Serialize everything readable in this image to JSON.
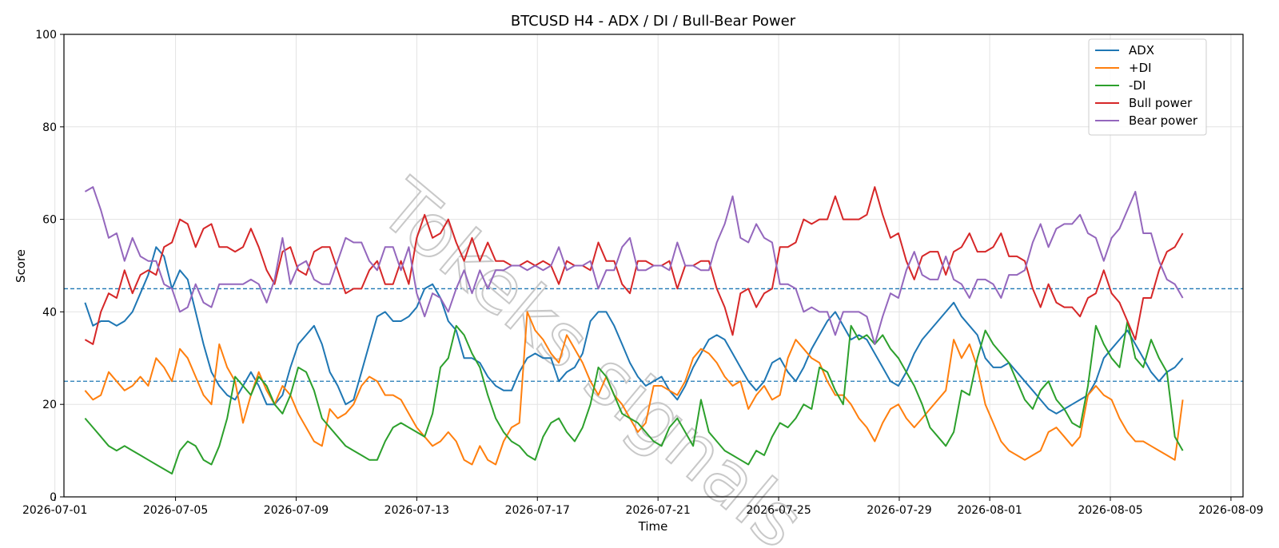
{
  "chart_data": {
    "type": "line",
    "title": "BTCUSD H4 - ADX / DI / Bull-Bear Power",
    "xlabel": "Time",
    "ylabel": "Score",
    "ylim": [
      0,
      100
    ],
    "xlim": [
      "2026-07-01",
      "2026-08-09"
    ],
    "x_ticks": [
      "2026-07-01",
      "2026-07-05",
      "2026-07-09",
      "2026-07-13",
      "2026-07-17",
      "2026-07-21",
      "2026-07-25",
      "2026-07-29",
      "2026-08-01",
      "2026-08-05",
      "2026-08-09"
    ],
    "y_ticks": [
      0,
      20,
      40,
      60,
      80,
      100
    ],
    "grid": true,
    "legend_position": "top-right",
    "reference_lines": [
      45,
      25
    ],
    "watermark": "Tokeks signals",
    "x_start": "2026-07-02",
    "x_end": "2026-08-07",
    "series": [
      {
        "name": "ADX",
        "color": "#1f77b4",
        "values": [
          42,
          37,
          38,
          38,
          37,
          38,
          40,
          44,
          48,
          54,
          52,
          45,
          49,
          47,
          40,
          33,
          27,
          24,
          22,
          21,
          24,
          27,
          24,
          20,
          20,
          22,
          28,
          33,
          35,
          37,
          33,
          27,
          24,
          20,
          21,
          27,
          33,
          39,
          40,
          38,
          38,
          39,
          41,
          45,
          46,
          43,
          38,
          36,
          30,
          30,
          29,
          26,
          24,
          23,
          23,
          27,
          30,
          31,
          30,
          30,
          25,
          27,
          28,
          31,
          38,
          40,
          40,
          37,
          33,
          29,
          26,
          24,
          25,
          26,
          23,
          21,
          24,
          28,
          31,
          34,
          35,
          34,
          31,
          28,
          25,
          23,
          25,
          29,
          30,
          27,
          25,
          28,
          32,
          35,
          38,
          40,
          37,
          34,
          35,
          34,
          31,
          28,
          25,
          24,
          27,
          31,
          34,
          36,
          38,
          40,
          42,
          39,
          37,
          35,
          30,
          28,
          28,
          29,
          27,
          25,
          23,
          21,
          19,
          18,
          19,
          20,
          21,
          22,
          25,
          30,
          32,
          34,
          36,
          33,
          30,
          27,
          25,
          27,
          28,
          30
        ]
      },
      {
        "name": "+DI",
        "color": "#ff7f0e",
        "values": [
          23,
          21,
          22,
          27,
          25,
          23,
          24,
          26,
          24,
          30,
          28,
          25,
          32,
          30,
          26,
          22,
          20,
          33,
          28,
          25,
          16,
          22,
          27,
          23,
          20,
          24,
          22,
          18,
          15,
          12,
          11,
          19,
          17,
          18,
          20,
          24,
          26,
          25,
          22,
          22,
          21,
          18,
          15,
          13,
          11,
          12,
          14,
          12,
          8,
          7,
          11,
          8,
          7,
          12,
          15,
          16,
          40,
          36,
          34,
          31,
          29,
          35,
          32,
          29,
          25,
          22,
          26,
          22,
          20,
          17,
          14,
          16,
          24,
          24,
          23,
          22,
          25,
          30,
          32,
          31,
          29,
          26,
          24,
          25,
          19,
          22,
          24,
          21,
          22,
          30,
          34,
          32,
          30,
          29,
          25,
          22,
          22,
          20,
          17,
          15,
          12,
          16,
          19,
          20,
          17,
          15,
          17,
          19,
          21,
          23,
          34,
          30,
          33,
          28,
          20,
          16,
          12,
          10,
          9,
          8,
          9,
          10,
          14,
          15,
          13,
          11,
          13,
          22,
          24,
          22,
          21,
          17,
          14,
          12,
          12,
          11,
          10,
          9,
          8,
          21
        ]
      },
      {
        "name": "-DI",
        "color": "#2ca02c",
        "values": [
          17,
          15,
          13,
          11,
          10,
          11,
          10,
          9,
          8,
          7,
          6,
          5,
          10,
          12,
          11,
          8,
          7,
          11,
          17,
          26,
          24,
          22,
          26,
          24,
          20,
          18,
          22,
          28,
          27,
          23,
          17,
          15,
          13,
          11,
          10,
          9,
          8,
          8,
          12,
          15,
          16,
          15,
          14,
          13,
          18,
          28,
          30,
          37,
          35,
          31,
          28,
          22,
          17,
          14,
          12,
          11,
          9,
          8,
          13,
          16,
          17,
          14,
          12,
          15,
          20,
          28,
          26,
          22,
          18,
          17,
          16,
          14,
          12,
          11,
          15,
          17,
          14,
          11,
          21,
          14,
          12,
          10,
          9,
          8,
          7,
          10,
          9,
          13,
          16,
          15,
          17,
          20,
          19,
          28,
          27,
          23,
          20,
          37,
          34,
          35,
          33,
          35,
          32,
          30,
          27,
          24,
          20,
          15,
          13,
          11,
          14,
          23,
          22,
          30,
          36,
          33,
          31,
          29,
          25,
          21,
          19,
          23,
          25,
          21,
          19,
          16,
          15,
          24,
          37,
          33,
          30,
          28,
          38,
          30,
          28,
          34,
          30,
          27,
          13,
          10
        ]
      },
      {
        "name": "Bull power",
        "color": "#d62728",
        "values": [
          34,
          33,
          40,
          44,
          43,
          49,
          44,
          48,
          49,
          48,
          54,
          55,
          60,
          59,
          54,
          58,
          59,
          54,
          54,
          53,
          54,
          58,
          54,
          49,
          46,
          53,
          54,
          49,
          48,
          53,
          54,
          54,
          49,
          44,
          45,
          45,
          49,
          51,
          46,
          46,
          51,
          46,
          56,
          61,
          56,
          57,
          60,
          55,
          51,
          56,
          51,
          55,
          51,
          51,
          50,
          50,
          51,
          50,
          51,
          50,
          46,
          51,
          50,
          50,
          49,
          55,
          51,
          51,
          46,
          44,
          51,
          51,
          50,
          50,
          51,
          45,
          50,
          50,
          51,
          51,
          45,
          41,
          35,
          44,
          45,
          41,
          44,
          45,
          54,
          54,
          55,
          60,
          59,
          60,
          60,
          65,
          60,
          60,
          60,
          61,
          67,
          61,
          56,
          57,
          51,
          47,
          52,
          53,
          53,
          48,
          53,
          54,
          57,
          53,
          53,
          54,
          57,
          52,
          52,
          51,
          45,
          41,
          46,
          42,
          41,
          41,
          39,
          43,
          44,
          49,
          44,
          42,
          38,
          34,
          43,
          43,
          49,
          53,
          54,
          57
        ]
      },
      {
        "name": "Bear power",
        "color": "#9467bd",
        "values": [
          66,
          67,
          62,
          56,
          57,
          51,
          56,
          52,
          51,
          51,
          46,
          45,
          40,
          41,
          46,
          42,
          41,
          46,
          46,
          46,
          46,
          47,
          46,
          42,
          47,
          56,
          46,
          50,
          51,
          47,
          46,
          46,
          51,
          56,
          55,
          55,
          51,
          49,
          54,
          54,
          49,
          54,
          44,
          39,
          44,
          43,
          40,
          45,
          49,
          44,
          49,
          45,
          49,
          49,
          50,
          50,
          49,
          50,
          49,
          50,
          54,
          49,
          50,
          50,
          51,
          45,
          49,
          49,
          54,
          56,
          49,
          49,
          50,
          50,
          49,
          55,
          50,
          50,
          49,
          49,
          55,
          59,
          65,
          56,
          55,
          59,
          56,
          55,
          46,
          46,
          45,
          40,
          41,
          40,
          40,
          35,
          40,
          40,
          40,
          39,
          33,
          39,
          44,
          43,
          49,
          53,
          48,
          47,
          47,
          52,
          47,
          46,
          43,
          47,
          47,
          46,
          43,
          48,
          48,
          49,
          55,
          59,
          54,
          58,
          59,
          59,
          61,
          57,
          56,
          51,
          56,
          58,
          62,
          66,
          57,
          57,
          51,
          47,
          46,
          43
        ]
      }
    ]
  }
}
